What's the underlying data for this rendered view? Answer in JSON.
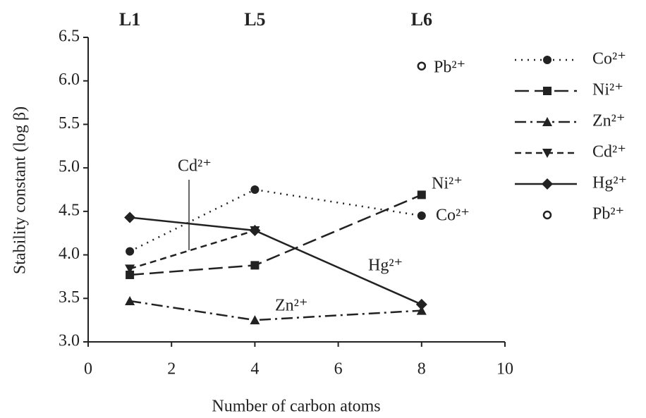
{
  "chart_data": {
    "type": "line",
    "top_labels": [
      "L1",
      "L5",
      "L6"
    ],
    "ylabel": "Stability constant (log β)",
    "xlabel": "Number of carbon atoms",
    "x": [
      1,
      4,
      8
    ],
    "xlim": [
      0,
      10
    ],
    "xticks": [
      0,
      2,
      4,
      6,
      8,
      10
    ],
    "ylim": [
      3,
      6.5
    ],
    "yticks": [
      {
        "value": 3,
        "label": "3.0"
      },
      3.5,
      {
        "value": 4,
        "label": "4.0"
      },
      4.5,
      {
        "value": 5,
        "label": "5.0"
      },
      5.5,
      {
        "value": 6,
        "label": "6.0"
      },
      6.5
    ],
    "series": [
      {
        "name": "Co²⁺",
        "color": "#222222",
        "values": [
          4.04,
          4.75,
          4.45
        ]
      },
      {
        "name": "Ni²⁺",
        "color": "#222222",
        "values": [
          3.77,
          3.88,
          4.69
        ]
      },
      {
        "name": "Zn²⁺",
        "color": "#222222",
        "values": [
          3.47,
          3.25,
          3.36
        ]
      },
      {
        "name": "Cd²⁺",
        "color": "#222222",
        "values": [
          3.84,
          4.28,
          null
        ]
      },
      {
        "name": "Hg²⁺",
        "color": "#222222",
        "values": [
          4.43,
          4.28,
          3.43
        ]
      },
      {
        "name": "Pb²⁺",
        "color": "#222222",
        "values": [
          null,
          null,
          6.17
        ]
      }
    ],
    "annotations": [
      "Pb²⁺",
      "Ni²⁺",
      "Co²⁺",
      "Hg²⁺",
      "Zn²⁺",
      "Cd²⁺"
    ]
  }
}
